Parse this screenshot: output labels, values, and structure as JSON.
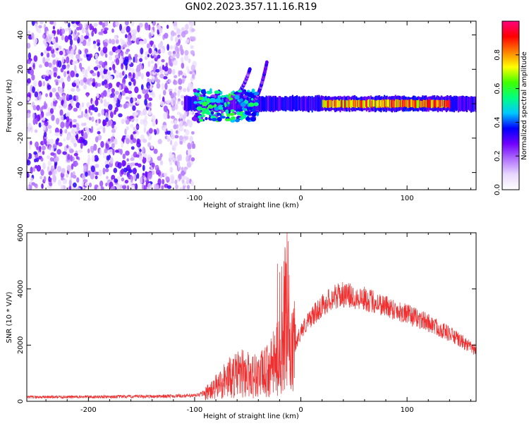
{
  "figure_title": "GN02.2023.357.11.16.R19",
  "chart_data": [
    {
      "type": "heatmap",
      "xlabel": "Height of straight line (km)",
      "ylabel": "Frequency (Hz)",
      "xlim": [
        -258,
        165
      ],
      "ylim": [
        -50,
        48
      ],
      "x_ticks": [
        -200,
        -100,
        0,
        100
      ],
      "y_ticks": [
        -40,
        -20,
        0,
        20,
        40
      ],
      "colorbar": {
        "label": "Normalized spectral amplitude",
        "range": [
          0,
          1
        ],
        "ticks": [
          0.0,
          0.2,
          0.4,
          0.6,
          0.8
        ],
        "colormap": "rainbow",
        "colors": [
          "#ffffff",
          "#e8d8ff",
          "#b070ff",
          "#7000ff",
          "#0000ff",
          "#00c8ff",
          "#00ff80",
          "#40ff00",
          "#ffff00",
          "#ff8000",
          "#ff0000",
          "#ff0080"
        ]
      },
      "features": [
        {
          "kind": "noise",
          "x_range": [
            -258,
            -100
          ],
          "y_range": [
            -50,
            48
          ],
          "level": 0.12
        },
        {
          "kind": "band",
          "x_range": [
            -110,
            165
          ],
          "center_freq": 0,
          "width_hz": 4,
          "level": 0.35
        },
        {
          "kind": "band",
          "x_range": [
            20,
            140
          ],
          "center_freq": 0,
          "width_hz": 2,
          "level": 0.9
        },
        {
          "kind": "arc",
          "x_range": [
            -65,
            -48
          ],
          "freq_range": [
            4,
            20
          ],
          "level": 0.3
        },
        {
          "kind": "arc",
          "x_range": [
            -48,
            -32
          ],
          "freq_range": [
            0,
            24
          ],
          "level": 0.3
        },
        {
          "kind": "cluster",
          "x_range": [
            -100,
            -40
          ],
          "freq_range": [
            -10,
            8
          ],
          "level": 0.45
        }
      ]
    },
    {
      "type": "line",
      "xlabel": "Height of straight line (km)",
      "ylabel": "SNR (10 * V/V)",
      "xlim": [
        -258,
        165
      ],
      "ylim": [
        0,
        6000
      ],
      "x_ticks": [
        -200,
        -100,
        0,
        100
      ],
      "y_ticks": [
        0,
        2000,
        4000,
        6000
      ],
      "series": [
        {
          "color": "#f03030",
          "envelope": [
            {
              "x": -258,
              "y": 150
            },
            {
              "x": -200,
              "y": 160
            },
            {
              "x": -150,
              "y": 170
            },
            {
              "x": -100,
              "y": 200
            },
            {
              "x": -85,
              "y": 350
            },
            {
              "x": -70,
              "y": 800
            },
            {
              "x": -55,
              "y": 1000
            },
            {
              "x": -40,
              "y": 900
            },
            {
              "x": -30,
              "y": 1100
            },
            {
              "x": -20,
              "y": 1600
            },
            {
              "x": -15,
              "y": 3000
            },
            {
              "x": -10,
              "y": 1500
            },
            {
              "x": -5,
              "y": 2000
            },
            {
              "x": 0,
              "y": 2500
            },
            {
              "x": 10,
              "y": 3000
            },
            {
              "x": 20,
              "y": 3400
            },
            {
              "x": 30,
              "y": 3700
            },
            {
              "x": 40,
              "y": 3800
            },
            {
              "x": 60,
              "y": 3650
            },
            {
              "x": 80,
              "y": 3400
            },
            {
              "x": 100,
              "y": 3100
            },
            {
              "x": 120,
              "y": 2800
            },
            {
              "x": 140,
              "y": 2400
            },
            {
              "x": 165,
              "y": 1800
            }
          ],
          "spikes": [
            {
              "x": -22,
              "y": 4900
            },
            {
              "x": -20,
              "y": 4600
            },
            {
              "x": -18,
              "y": 4800
            },
            {
              "x": -13,
              "y": 6000
            },
            {
              "x": -12,
              "y": 5700
            },
            {
              "x": -11,
              "y": 4500
            }
          ]
        }
      ]
    }
  ]
}
